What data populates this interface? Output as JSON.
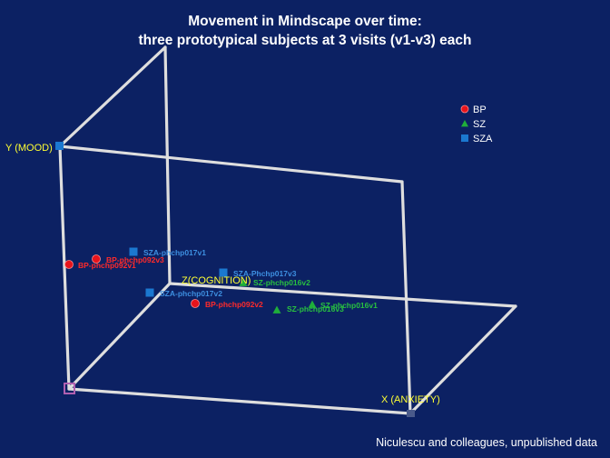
{
  "slide": {
    "title_line1": "Movement in Mindscape over time:",
    "title_line2": "three prototypical subjects at 3 visits (v1-v3) each",
    "credit": "Niculescu and colleagues, unpublished data"
  },
  "chart_data": {
    "type": "scatter",
    "title": "Movement in Mindscape over time: three prototypical subjects at 3 visits (v1-v3) each",
    "axes": {
      "x": "X (ANXIETY)",
      "y": "Y (MOOD)",
      "z": "Z(COGNITION)"
    },
    "legend_position": "top-right",
    "series": [
      {
        "name": "BP",
        "marker": "sphere",
        "color": "#e8141c",
        "points": [
          {
            "label": "BP-phchp092v1"
          },
          {
            "label": "BP-phchp092v3"
          },
          {
            "label": "BP-phchp092v2"
          }
        ]
      },
      {
        "name": "SZ",
        "marker": "triangle",
        "color": "#1fae3a",
        "points": [
          {
            "label": "SZ-phchp016v2"
          },
          {
            "label": "SZ-phchp016v1"
          },
          {
            "label": "SZ-phchp016v3"
          }
        ]
      },
      {
        "name": "SZA",
        "marker": "square",
        "color": "#1b78d0",
        "points": [
          {
            "label": "SZA-phchp017v1"
          },
          {
            "label": "SZA-Phchp017v3"
          },
          {
            "label": "SZA-phchp017v2"
          }
        ]
      }
    ]
  }
}
